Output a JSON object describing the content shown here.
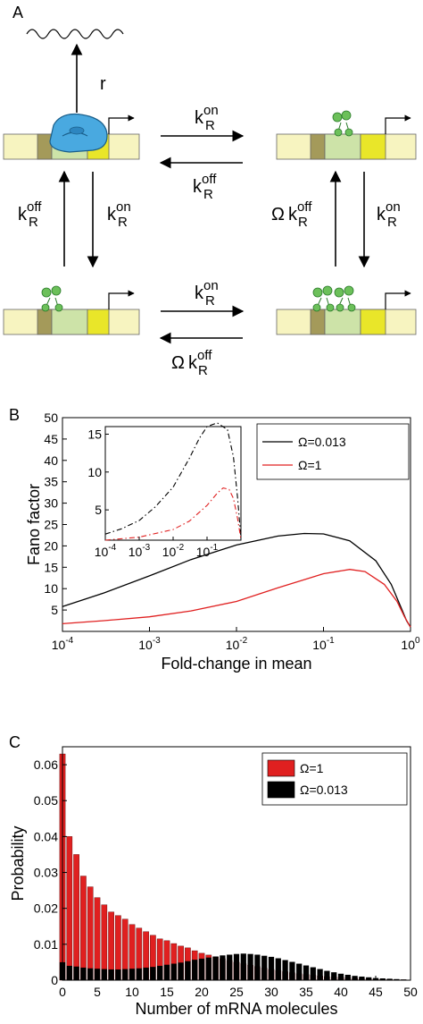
{
  "panel_a": {
    "letter": "A",
    "rates": {
      "r": "r",
      "k": "k",
      "sub": "R",
      "on": "on",
      "off": "off",
      "omega": "Ω"
    }
  },
  "chart_data": [
    {
      "panel": "B",
      "type": "line",
      "xlabel": "Fold-change in mean",
      "ylabel": "Fano factor",
      "xscale": "log",
      "xlim": [
        0.0001,
        1
      ],
      "ylim": [
        0,
        50
      ],
      "yticks": [
        "5",
        "10",
        "15",
        "20",
        "25",
        "30",
        "35",
        "40",
        "45",
        "50"
      ],
      "xticks": [
        "-4",
        "-3",
        "-2",
        "-1",
        "0"
      ],
      "xtick_base": "10",
      "legend_position": "top-right",
      "series": [
        {
          "name": "Ω=0.013",
          "color": "#000000",
          "x": [
            0.0001,
            0.0003,
            0.001,
            0.003,
            0.01,
            0.03,
            0.06,
            0.1,
            0.2,
            0.4,
            0.6,
            0.8,
            0.9,
            1.0
          ],
          "y": [
            5.8,
            9.0,
            13.0,
            16.8,
            20.2,
            22.3,
            22.9,
            22.8,
            21.2,
            16.5,
            11.0,
            5.0,
            2.5,
            1.0
          ]
        },
        {
          "name": "Ω=1",
          "color": "#e02020",
          "x": [
            0.0001,
            0.0003,
            0.001,
            0.003,
            0.01,
            0.03,
            0.1,
            0.2,
            0.3,
            0.5,
            0.7,
            0.85,
            1.0
          ],
          "y": [
            1.8,
            2.5,
            3.4,
            4.8,
            7.0,
            10.2,
            13.5,
            14.5,
            14.0,
            11.0,
            7.0,
            3.5,
            1.0
          ]
        }
      ],
      "inset": {
        "xscale": "log",
        "xlim": [
          0.0001,
          1
        ],
        "ylim": [
          1,
          16
        ],
        "yticks": [
          "5",
          "10",
          "15"
        ],
        "xticks": [
          "-4",
          "-3",
          "-2",
          "-1"
        ],
        "series": [
          {
            "name": "Ω=0.013",
            "color": "#000000",
            "style": "dashdot",
            "x": [
              0.0001,
              0.0003,
              0.001,
              0.003,
              0.01,
              0.03,
              0.06,
              0.1,
              0.2,
              0.4,
              0.6,
              0.8,
              1.0
            ],
            "y": [
              1.8,
              2.5,
              3.6,
              5.4,
              8.0,
              11.8,
              14.5,
              16.0,
              16.5,
              15.6,
              12.0,
              6.5,
              1.2
            ]
          },
          {
            "name": "Ω=1",
            "color": "#e02020",
            "style": "dashdot",
            "x": [
              0.0001,
              0.001,
              0.01,
              0.03,
              0.1,
              0.2,
              0.3,
              0.45,
              0.6,
              0.8,
              1.0
            ],
            "y": [
              1.0,
              1.4,
              2.4,
              3.5,
              5.6,
              7.2,
              7.9,
              7.7,
              6.5,
              3.8,
              1.1
            ]
          }
        ]
      }
    },
    {
      "panel": "C",
      "type": "bar",
      "xlabel": "Number of mRNA molecules",
      "ylabel": "Probability",
      "xlim": [
        0,
        50
      ],
      "ylim": [
        0,
        0.065
      ],
      "xticks": [
        "0",
        "5",
        "10",
        "15",
        "20",
        "25",
        "30",
        "35",
        "40",
        "45",
        "50"
      ],
      "yticks": [
        "0",
        "0.01",
        "0.02",
        "0.03",
        "0.04",
        "0.05",
        "0.06"
      ],
      "legend_position": "top-right",
      "series": [
        {
          "name": "Ω=1",
          "color": "#e02020",
          "values": [
            0.063,
            0.04,
            0.035,
            0.029,
            0.026,
            0.023,
            0.021,
            0.019,
            0.018,
            0.017,
            0.0155,
            0.0145,
            0.0135,
            0.0125,
            0.0115,
            0.011,
            0.0102,
            0.0095,
            0.009,
            0.0082,
            0.0075,
            0.007,
            0.0065,
            0.006,
            0.0055,
            0.005,
            0.0046,
            0.0042,
            0.0038,
            0.0034,
            0.003,
            0.0027,
            0.0024,
            0.0021,
            0.0018,
            0.0016,
            0.0014,
            0.0012,
            0.001,
            0.0009,
            0.0008,
            0.0007,
            0.0006,
            0.0005,
            0.0004,
            0.0003,
            0.0002,
            0.0002,
            0.0001,
            0.0001
          ]
        },
        {
          "name": "Ω=0.013",
          "color": "#000000",
          "values": [
            0.005,
            0.004,
            0.0038,
            0.0035,
            0.0033,
            0.0032,
            0.0031,
            0.003,
            0.003,
            0.0031,
            0.0032,
            0.0033,
            0.0035,
            0.0037,
            0.004,
            0.0043,
            0.0046,
            0.0049,
            0.0053,
            0.0057,
            0.006,
            0.0063,
            0.0066,
            0.0069,
            0.0071,
            0.0073,
            0.0074,
            0.0073,
            0.0071,
            0.0068,
            0.0065,
            0.0061,
            0.0056,
            0.0051,
            0.0046,
            0.0041,
            0.0036,
            0.0031,
            0.0026,
            0.0022,
            0.0018,
            0.0015,
            0.0012,
            0.001,
            0.0008,
            0.0006,
            0.0005,
            0.0004,
            0.0003,
            0.0002
          ]
        }
      ]
    }
  ]
}
